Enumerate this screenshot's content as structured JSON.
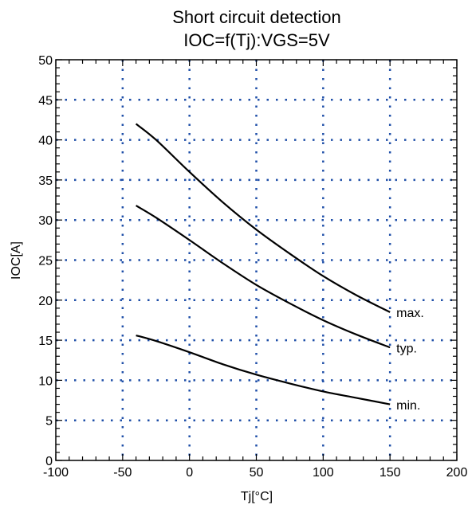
{
  "chart_data": {
    "type": "line",
    "title": "Short circuit detection",
    "subtitle": "IOC=f(Tj):VGS=5V",
    "xlabel": "Tj[°C]",
    "ylabel": "IOC[A]",
    "xlim": [
      -100,
      200
    ],
    "ylim": [
      0,
      50
    ],
    "x_ticks": [
      -100,
      -50,
      0,
      50,
      100,
      150,
      200
    ],
    "y_ticks": [
      0,
      5,
      10,
      15,
      20,
      25,
      30,
      35,
      40,
      45,
      50
    ],
    "x_tick_labels": [
      "-100",
      "-50",
      "0",
      "50",
      "100",
      "150",
      "200"
    ],
    "y_tick_labels": [
      "0",
      "5",
      "10",
      "15",
      "20",
      "25",
      "30",
      "35",
      "40",
      "45",
      "50"
    ],
    "grid": true,
    "grid_style": "dotted",
    "grid_color": "#1f4fa8",
    "line_color": "#000000",
    "series": [
      {
        "name": "max.",
        "x": [
          -40,
          -25,
          0,
          25,
          50,
          75,
          100,
          125,
          150
        ],
        "y": [
          42.0,
          40.0,
          36.0,
          32.2,
          28.8,
          25.8,
          23.0,
          20.6,
          18.5
        ]
      },
      {
        "name": "typ.",
        "x": [
          -40,
          -25,
          0,
          25,
          50,
          75,
          100,
          125,
          150
        ],
        "y": [
          31.8,
          30.3,
          27.5,
          24.6,
          21.9,
          19.6,
          17.5,
          15.7,
          14.1
        ]
      },
      {
        "name": "min.",
        "x": [
          -40,
          -25,
          0,
          25,
          50,
          75,
          100,
          125,
          150
        ],
        "y": [
          15.6,
          14.9,
          13.5,
          12.0,
          10.7,
          9.6,
          8.6,
          7.8,
          7.0
        ]
      }
    ]
  }
}
